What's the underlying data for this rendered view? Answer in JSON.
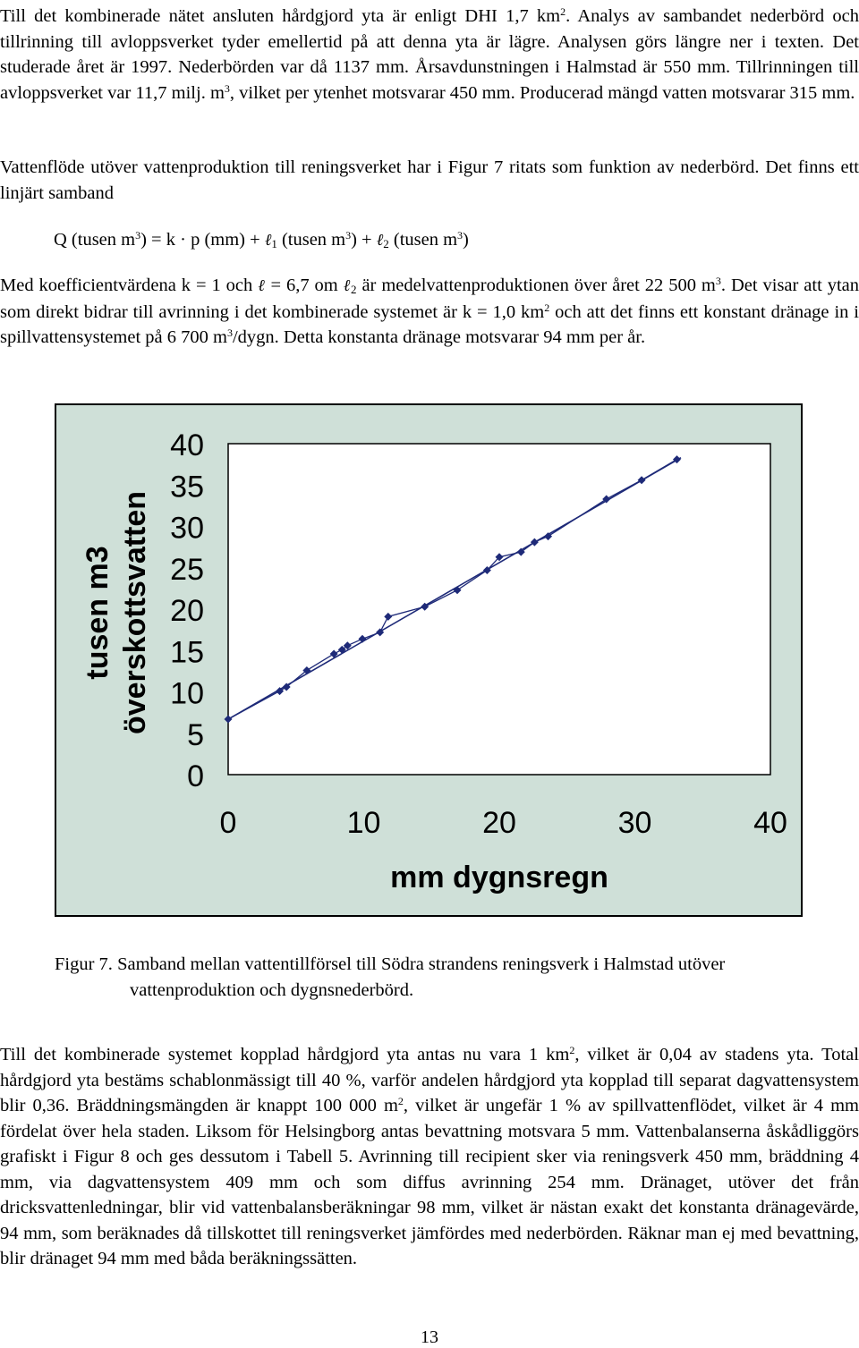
{
  "para1": {
    "t1": "Till det kombinerade nätet ansluten hårdgjord yta är enligt DHI 1,7 km",
    "s1": "2",
    "t2": ". Analys av sambandet nederbörd och tillrinning till avloppsverket tyder emellertid på att denna yta är lägre. Analysen görs längre ner i texten. Det studerade året är 1997. Nederbörden var då 1137 mm. Årsavdunstningen i Halmstad är 550 mm. Tillrinningen till avloppsverket var 11,7 milj. m",
    "s2": "3",
    "t3": ", vilket per ytenhet motsvarar 450 mm. Producerad mängd vatten motsvarar 315 mm."
  },
  "para2": "Vattenflöde utöver vattenproduktion till reningsverket har i Figur 7 ritats som funktion av nederbörd. Det finns ett linjärt samband",
  "equation": {
    "a": "Q (tusen m",
    "s1": "3",
    "b": ") = k · p (mm) + ",
    "l": "ℓ",
    "sub1": "1",
    "c": " (tusen m",
    "s2": "3",
    "d": ") + ",
    "sub2": "2",
    "e": " (tusen m",
    "s3": "3",
    "f": ")"
  },
  "para3": {
    "t1": "Med koefficientvärdena k = 1 och ",
    "l": "ℓ",
    "t2": " = 6,7 om ",
    "sub": "2",
    "t3": " är medelvattenproduktionen över året 22 500 m",
    "s1": "3",
    "t4": ". Det visar att ytan som direkt bidrar till avrinning i det kombinerade systemet är k = 1,0 km",
    "s2": "2",
    "t5": " och att det finns ett konstant dränage in i spillvattensystemet på 6 700 m",
    "s3": "3",
    "t6": "/dygn. Detta konstanta dränage motsvarar 94 mm per år."
  },
  "chart_data": {
    "type": "scatter",
    "xlabel": "mm dygnsregn",
    "ylabel_line1": "tusen m3",
    "ylabel_line2": "överskottsvatten",
    "xlim": [
      0,
      40
    ],
    "ylim": [
      0,
      40
    ],
    "xticks": [
      "0",
      "10",
      "20",
      "30",
      "40"
    ],
    "yticks": [
      "40",
      "35",
      "30",
      "25",
      "20",
      "15",
      "10",
      "5",
      "0"
    ],
    "points": [
      {
        "x": 0,
        "y": 6.7
      },
      {
        "x": 3.8,
        "y": 10.1
      },
      {
        "x": 4.3,
        "y": 10.6
      },
      {
        "x": 5.8,
        "y": 12.6
      },
      {
        "x": 7.8,
        "y": 14.6
      },
      {
        "x": 8.4,
        "y": 15.1
      },
      {
        "x": 8.8,
        "y": 15.6
      },
      {
        "x": 9.9,
        "y": 16.4
      },
      {
        "x": 11.2,
        "y": 17.2
      },
      {
        "x": 11.8,
        "y": 19.1
      },
      {
        "x": 14.5,
        "y": 20.3
      },
      {
        "x": 16.9,
        "y": 22.3
      },
      {
        "x": 19.1,
        "y": 24.7
      },
      {
        "x": 20.0,
        "y": 26.3
      },
      {
        "x": 21.6,
        "y": 26.9
      },
      {
        "x": 22.6,
        "y": 28.1
      },
      {
        "x": 23.6,
        "y": 28.8
      },
      {
        "x": 27.9,
        "y": 33.3
      },
      {
        "x": 30.5,
        "y": 35.6
      },
      {
        "x": 33.1,
        "y": 38.1
      }
    ],
    "fit": {
      "x": [
        0,
        33.4
      ],
      "y": [
        6.7,
        38.3
      ]
    },
    "background": "#cfe0d8",
    "mark_color": "#1e2a78",
    "grid": false,
    "legend": "none"
  },
  "caption": {
    "label": "Figur 7.",
    "l1": " Samband mellan vattentillförsel till Södra strandens reningsverk i Halmstad utöver",
    "l2": "vattenproduktion och dygnsnederbörd."
  },
  "para4": {
    "t1": "Till det kombinerade systemet kopplad hårdgjord yta antas nu vara 1 km",
    "s1": "2",
    "t2": ", vilket är 0,04 av stadens yta. Total hårdgjord yta bestäms schablonmässigt till 40 %, varför andelen hårdgjord yta kopplad till separat dagvattensystem blir 0,36. Bräddningsmängden är knappt 100 000 m",
    "s2": "2",
    "t3": ", vilket är ungefär 1 % av spillvattenflödet, vilket är 4 mm fördelat över hela staden. Liksom för Helsingborg antas bevattning motsvara 5 mm. Vattenbalanserna åskådliggörs grafiskt i Figur 8 och ges dessutom i Tabell 5. Avrinning till recipient sker via reningsverk 450 mm, bräddning 4 mm, via dagvattensystem 409 mm och som diffus avrinning 254 mm. Dränaget, utöver det från dricksvattenledningar, blir vid vattenbalansberäkningar 98 mm, vilket är nästan exakt det konstanta dränagevärde, 94 mm, som beräknades då tillskottet till reningsverket jämfördes med nederbörden. Räknar man ej med bevattning, blir dränaget 94 mm med båda beräkningssätten."
  },
  "page_number": "13"
}
